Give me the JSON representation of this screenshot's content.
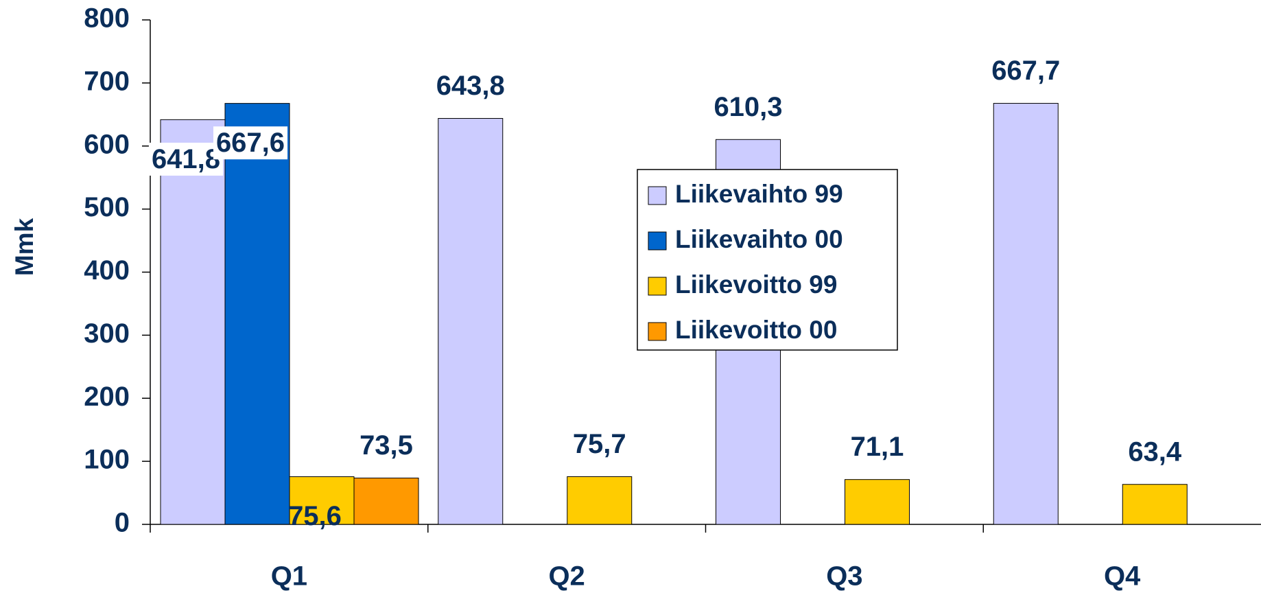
{
  "chart_data": {
    "type": "bar",
    "y_label": "Mmk",
    "categories": [
      "Q1",
      "Q2",
      "Q3",
      "Q4"
    ],
    "series": [
      {
        "name": "Liikevaihto 99",
        "color": "#ccccff",
        "values": [
          641.8,
          643.8,
          610.3,
          667.7
        ],
        "value_labels": [
          "641,8",
          "643,8",
          "610,3",
          "667,7"
        ]
      },
      {
        "name": "Liikevaihto 00",
        "color": "#0066cc",
        "values": [
          667.6,
          null,
          null,
          null
        ],
        "value_labels": [
          "667,6",
          null,
          null,
          null
        ]
      },
      {
        "name": "Liikevoitto 99",
        "color": "#ffcc00",
        "values": [
          75.6,
          75.7,
          71.1,
          63.4
        ],
        "value_labels": [
          "75,6",
          "75,7",
          "71,1",
          "63,4"
        ]
      },
      {
        "name": "Liikevoitto 00",
        "color": "#ff9900",
        "values": [
          73.5,
          null,
          null,
          null
        ],
        "value_labels": [
          "73,5",
          null,
          null,
          null
        ]
      }
    ],
    "ylim": [
      0,
      800
    ],
    "yticks": [
      0,
      100,
      200,
      300,
      400,
      500,
      600,
      700,
      800
    ],
    "grid": false
  }
}
